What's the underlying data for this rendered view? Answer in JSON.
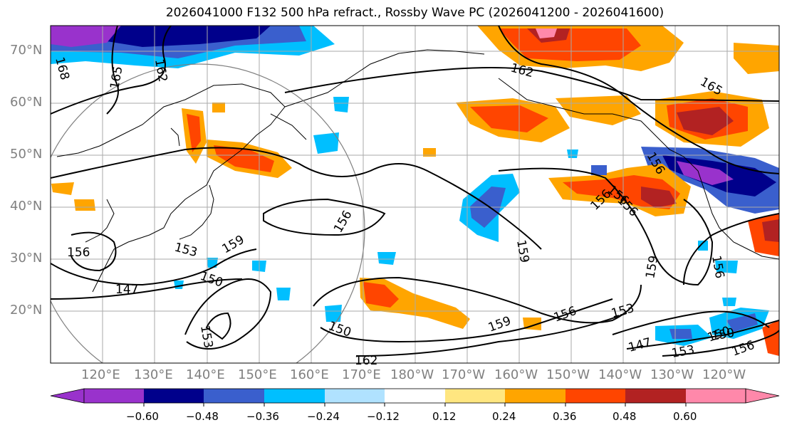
{
  "title": "2026041000 F132 500 hPa refract., Rossby Wave PC (2026041200 - 2026041600)",
  "lat_labels": [
    "70°N",
    "60°N",
    "50°N",
    "40°N",
    "30°N",
    "20°N"
  ],
  "lon_labels": [
    "120°E",
    "130°E",
    "140°E",
    "150°E",
    "160°E",
    "170°E",
    "180°W",
    "170°W",
    "160°W",
    "150°W",
    "140°W",
    "130°W",
    "120°W"
  ],
  "contour_labels": [
    "162",
    "168",
    "165",
    "162",
    "165",
    "159",
    "156",
    "153",
    "156",
    "150",
    "147",
    "159",
    "156",
    "153",
    "150",
    "156",
    "159",
    "156",
    "153",
    "147",
    "153",
    "150",
    "156",
    "162",
    "156",
    "156",
    "159",
    "156",
    "150"
  ],
  "colorbar": {
    "ticks": [
      "−0.60",
      "−0.48",
      "−0.36",
      "−0.24",
      "−0.12",
      "0.12",
      "0.24",
      "0.36",
      "0.48",
      "0.60"
    ],
    "colors": [
      "#9932cc",
      "#00008b",
      "#3a5fcd",
      "#00bfff",
      "#b0e2ff",
      "#ffffff",
      "#ffe680",
      "#ffa500",
      "#ff4500",
      "#b22222",
      "#ff88aa",
      "#ff88aa"
    ]
  },
  "shading_colors": {
    "dark_neg": "#00008b",
    "mid_neg": "#3a5fcd",
    "light_neg": "#00bfff",
    "pale_neg": "#b0e2ff",
    "yellow": "#ffe680",
    "orange": "#ffa500",
    "red_orange": "#ff4500",
    "dark_red": "#b22222",
    "pink": "#ff88aa",
    "purple": "#9932cc"
  }
}
